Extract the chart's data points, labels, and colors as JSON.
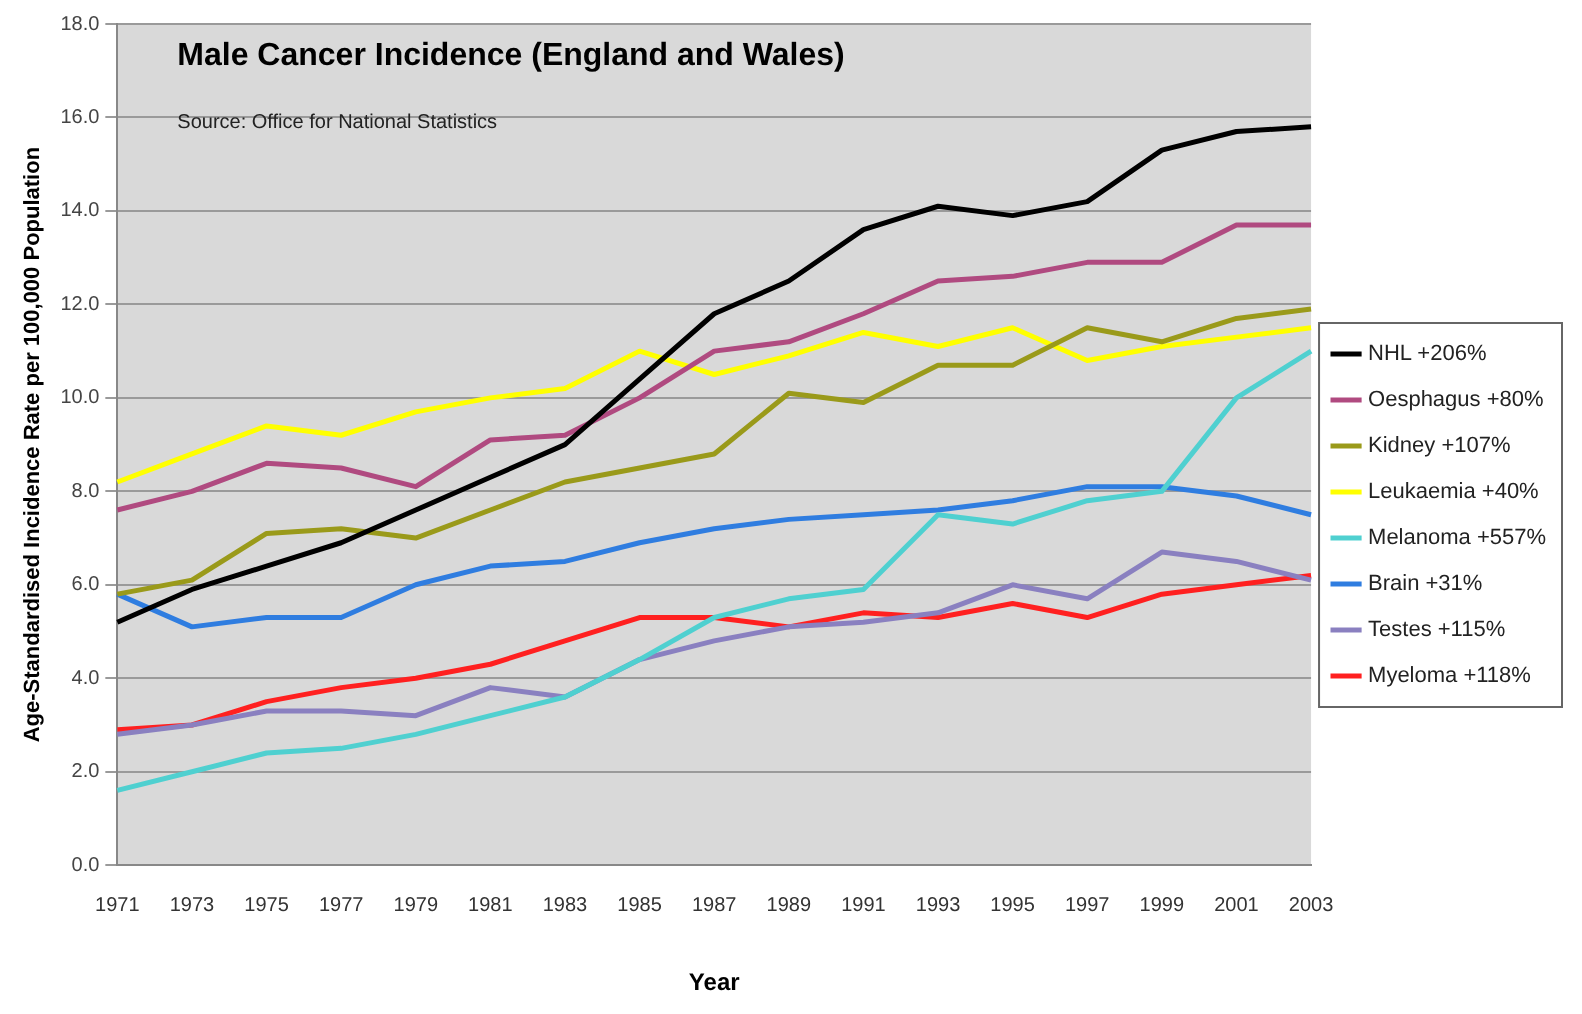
{
  "chart_data": {
    "type": "line",
    "title": "Male Cancer Incidence (England and Wales)",
    "xlabel": "Year",
    "ylabel": "Age-Standardised Incidence Rate per 100,000 Population",
    "annotations": [
      "Source: Office for National Statistics"
    ],
    "categories": [
      "1971",
      "1973",
      "1975",
      "1977",
      "1979",
      "1981",
      "1983",
      "1985",
      "1987",
      "1989",
      "1991",
      "1993",
      "1995",
      "1997",
      "1999",
      "2001",
      "2003"
    ],
    "series": [
      {
        "name": "NHL +206%",
        "color": "#000000",
        "values": [
          5.2,
          5.9,
          6.4,
          6.9,
          7.6,
          8.3,
          9.0,
          10.4,
          11.8,
          12.5,
          13.6,
          14.1,
          13.9,
          14.2,
          15.3,
          15.7,
          15.8
        ]
      },
      {
        "name": "Oesphagus +80%",
        "color": "#b04a80",
        "values": [
          7.6,
          8.0,
          8.6,
          8.5,
          8.1,
          9.1,
          9.2,
          10.0,
          11.0,
          11.2,
          11.8,
          12.5,
          12.6,
          12.9,
          12.9,
          13.7,
          13.7
        ]
      },
      {
        "name": "Kidney +107%",
        "color": "#9a9a1a",
        "values": [
          5.8,
          6.1,
          7.1,
          7.2,
          7.0,
          7.6,
          8.2,
          8.5,
          8.8,
          10.1,
          9.9,
          10.7,
          10.7,
          11.5,
          11.2,
          11.7,
          11.9
        ]
      },
      {
        "name": "Leukaemia +40%",
        "color": "#ffff00",
        "values": [
          8.2,
          8.8,
          9.4,
          9.2,
          9.7,
          10.0,
          10.2,
          11.0,
          10.5,
          10.9,
          11.4,
          11.1,
          11.5,
          10.8,
          11.1,
          11.3,
          11.5
        ]
      },
      {
        "name": "Melanoma +557%",
        "color": "#4fd0d0",
        "values": [
          1.6,
          2.0,
          2.4,
          2.5,
          2.8,
          3.2,
          3.6,
          4.4,
          5.3,
          5.7,
          5.9,
          7.5,
          7.3,
          7.8,
          8.0,
          10.0,
          11.0
        ]
      },
      {
        "name": "Brain +31%",
        "color": "#2f7de0",
        "values": [
          5.8,
          5.1,
          5.3,
          5.3,
          6.0,
          6.4,
          6.5,
          6.9,
          7.2,
          7.4,
          7.5,
          7.6,
          7.8,
          8.1,
          8.1,
          7.9,
          7.5
        ]
      },
      {
        "name": "Testes +115%",
        "color": "#8a80c0",
        "values": [
          2.8,
          3.0,
          3.3,
          3.3,
          3.2,
          3.8,
          3.6,
          4.4,
          4.8,
          5.1,
          5.2,
          5.4,
          6.0,
          5.7,
          6.7,
          6.5,
          6.1
        ]
      },
      {
        "name": "Myeloma +118%",
        "color": "#ff2020",
        "values": [
          2.9,
          3.0,
          3.5,
          3.8,
          4.0,
          4.3,
          4.8,
          5.3,
          5.3,
          5.1,
          5.4,
          5.3,
          5.6,
          5.3,
          5.8,
          6.0,
          6.2
        ]
      }
    ],
    "ylim": [
      0,
      18
    ],
    "yticks": [
      {
        "value": 0,
        "label": "0.0"
      },
      {
        "value": 2,
        "label": "2.0"
      },
      {
        "value": 4,
        "label": "4.0"
      },
      {
        "value": 6,
        "label": "6.0"
      },
      {
        "value": 8,
        "label": "8.0"
      },
      {
        "value": 10,
        "label": "10.0"
      },
      {
        "value": 12,
        "label": "12.0"
      },
      {
        "value": 14,
        "label": "14.0"
      },
      {
        "value": 16,
        "label": "16.0"
      },
      {
        "value": 18,
        "label": "18.0"
      }
    ],
    "grid": "y",
    "legend": "right",
    "marker": "none",
    "line_style": "solid"
  }
}
